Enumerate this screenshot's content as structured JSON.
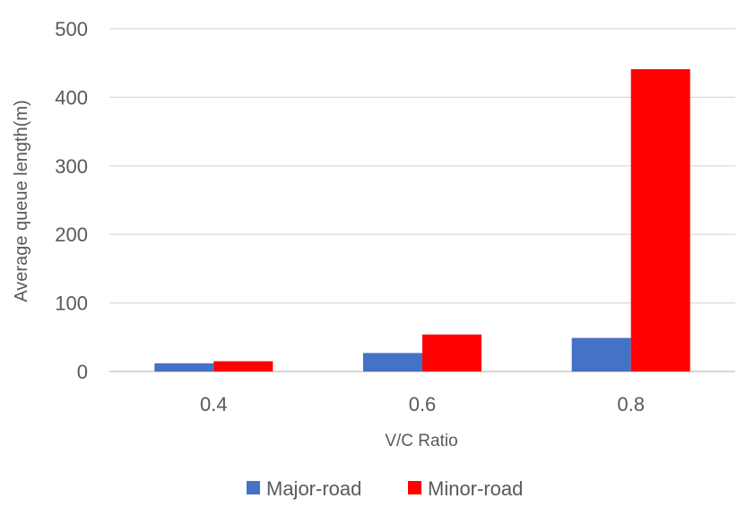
{
  "chart_data": {
    "type": "bar",
    "categories": [
      "0.4",
      "0.6",
      "0.8"
    ],
    "series": [
      {
        "name": "Major-road",
        "values": [
          12,
          27,
          49
        ],
        "color": "#4472c4"
      },
      {
        "name": "Minor-road",
        "values": [
          15,
          54,
          441
        ],
        "color": "#ff0000"
      }
    ],
    "xlabel": "V/C Ratio",
    "ylabel": "Average queue length(m)",
    "ylim": [
      0,
      500
    ],
    "yticks": [
      0,
      100,
      200,
      300,
      400,
      500
    ],
    "grid": true,
    "legend_position": "bottom"
  }
}
